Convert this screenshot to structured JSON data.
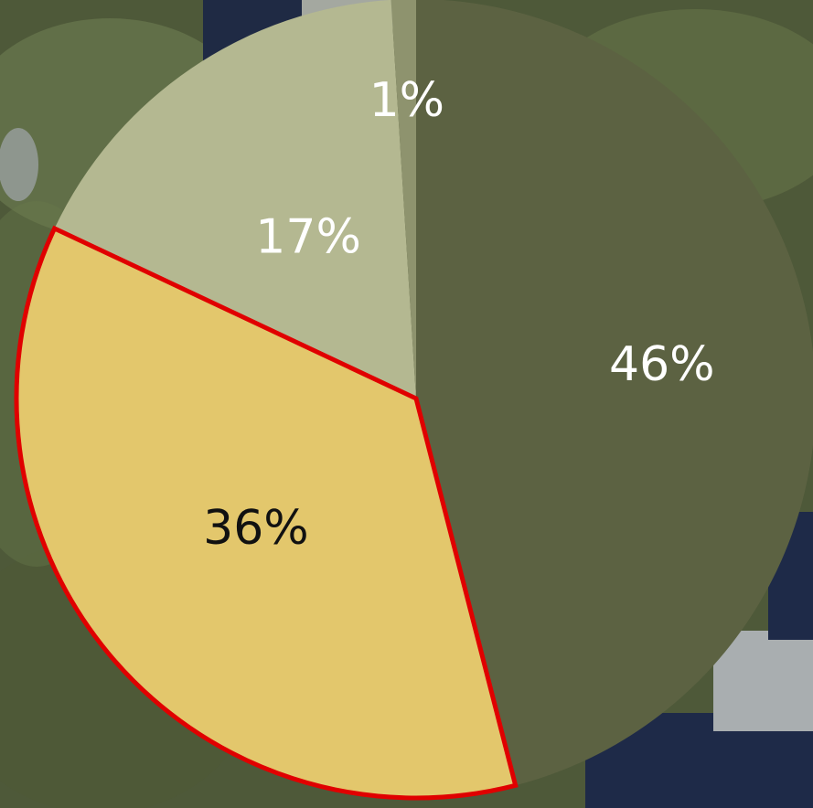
{
  "chart_data": {
    "type": "pie",
    "start_angle_deg": 0,
    "direction": "clockwise",
    "slices": [
      {
        "label": "46%",
        "value": 46,
        "color": "#5c6242",
        "label_color": "#ffffff",
        "highlighted": false
      },
      {
        "label": "36%",
        "value": 36,
        "color": "#e3c76c",
        "label_color": "#111111",
        "highlighted": true
      },
      {
        "label": "17%",
        "value": 17,
        "color": "#b4b891",
        "label_color": "#ffffff",
        "highlighted": false
      },
      {
        "label": "1%",
        "value": 1,
        "color": "#8e936e",
        "label_color": "#ffffff",
        "highlighted": false
      }
    ],
    "highlight_color": "#e00000"
  }
}
